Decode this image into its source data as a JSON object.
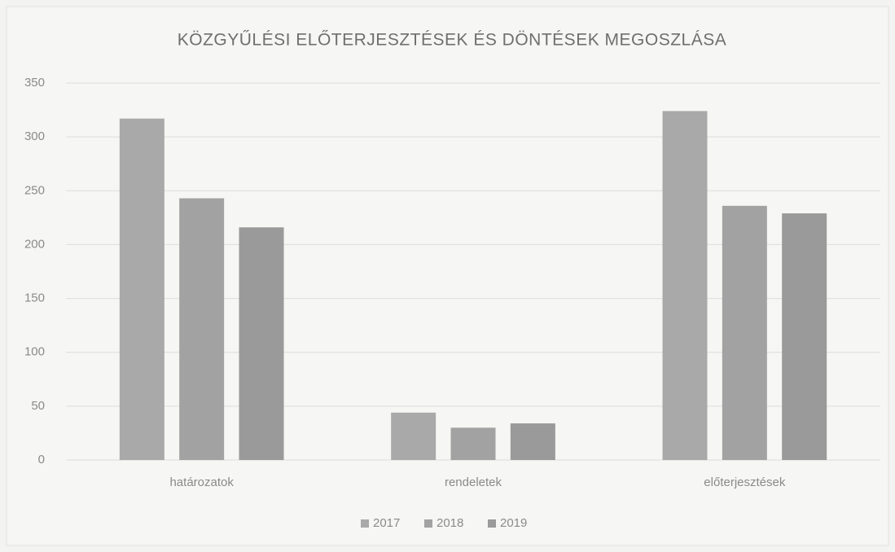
{
  "chart_data": {
    "type": "bar",
    "title": "KÖZGYŰLÉSI ELŐTERJESZTÉSEK ÉS DÖNTÉSEK MEGOSZLÁSA",
    "categories": [
      "határozatok",
      "rendeletek",
      "előterjesztések"
    ],
    "series": [
      {
        "name": "2017",
        "color": "#a9a9a9",
        "values": [
          317,
          44,
          324
        ]
      },
      {
        "name": "2018",
        "color": "#a2a2a2",
        "values": [
          243,
          30,
          236
        ]
      },
      {
        "name": "2019",
        "color": "#9a9a9a",
        "values": [
          216,
          34,
          229
        ]
      }
    ],
    "ylim": [
      0,
      350
    ],
    "yticks": [
      0,
      50,
      100,
      150,
      200,
      250,
      300,
      350
    ],
    "grid": true,
    "legend": "bottom"
  }
}
